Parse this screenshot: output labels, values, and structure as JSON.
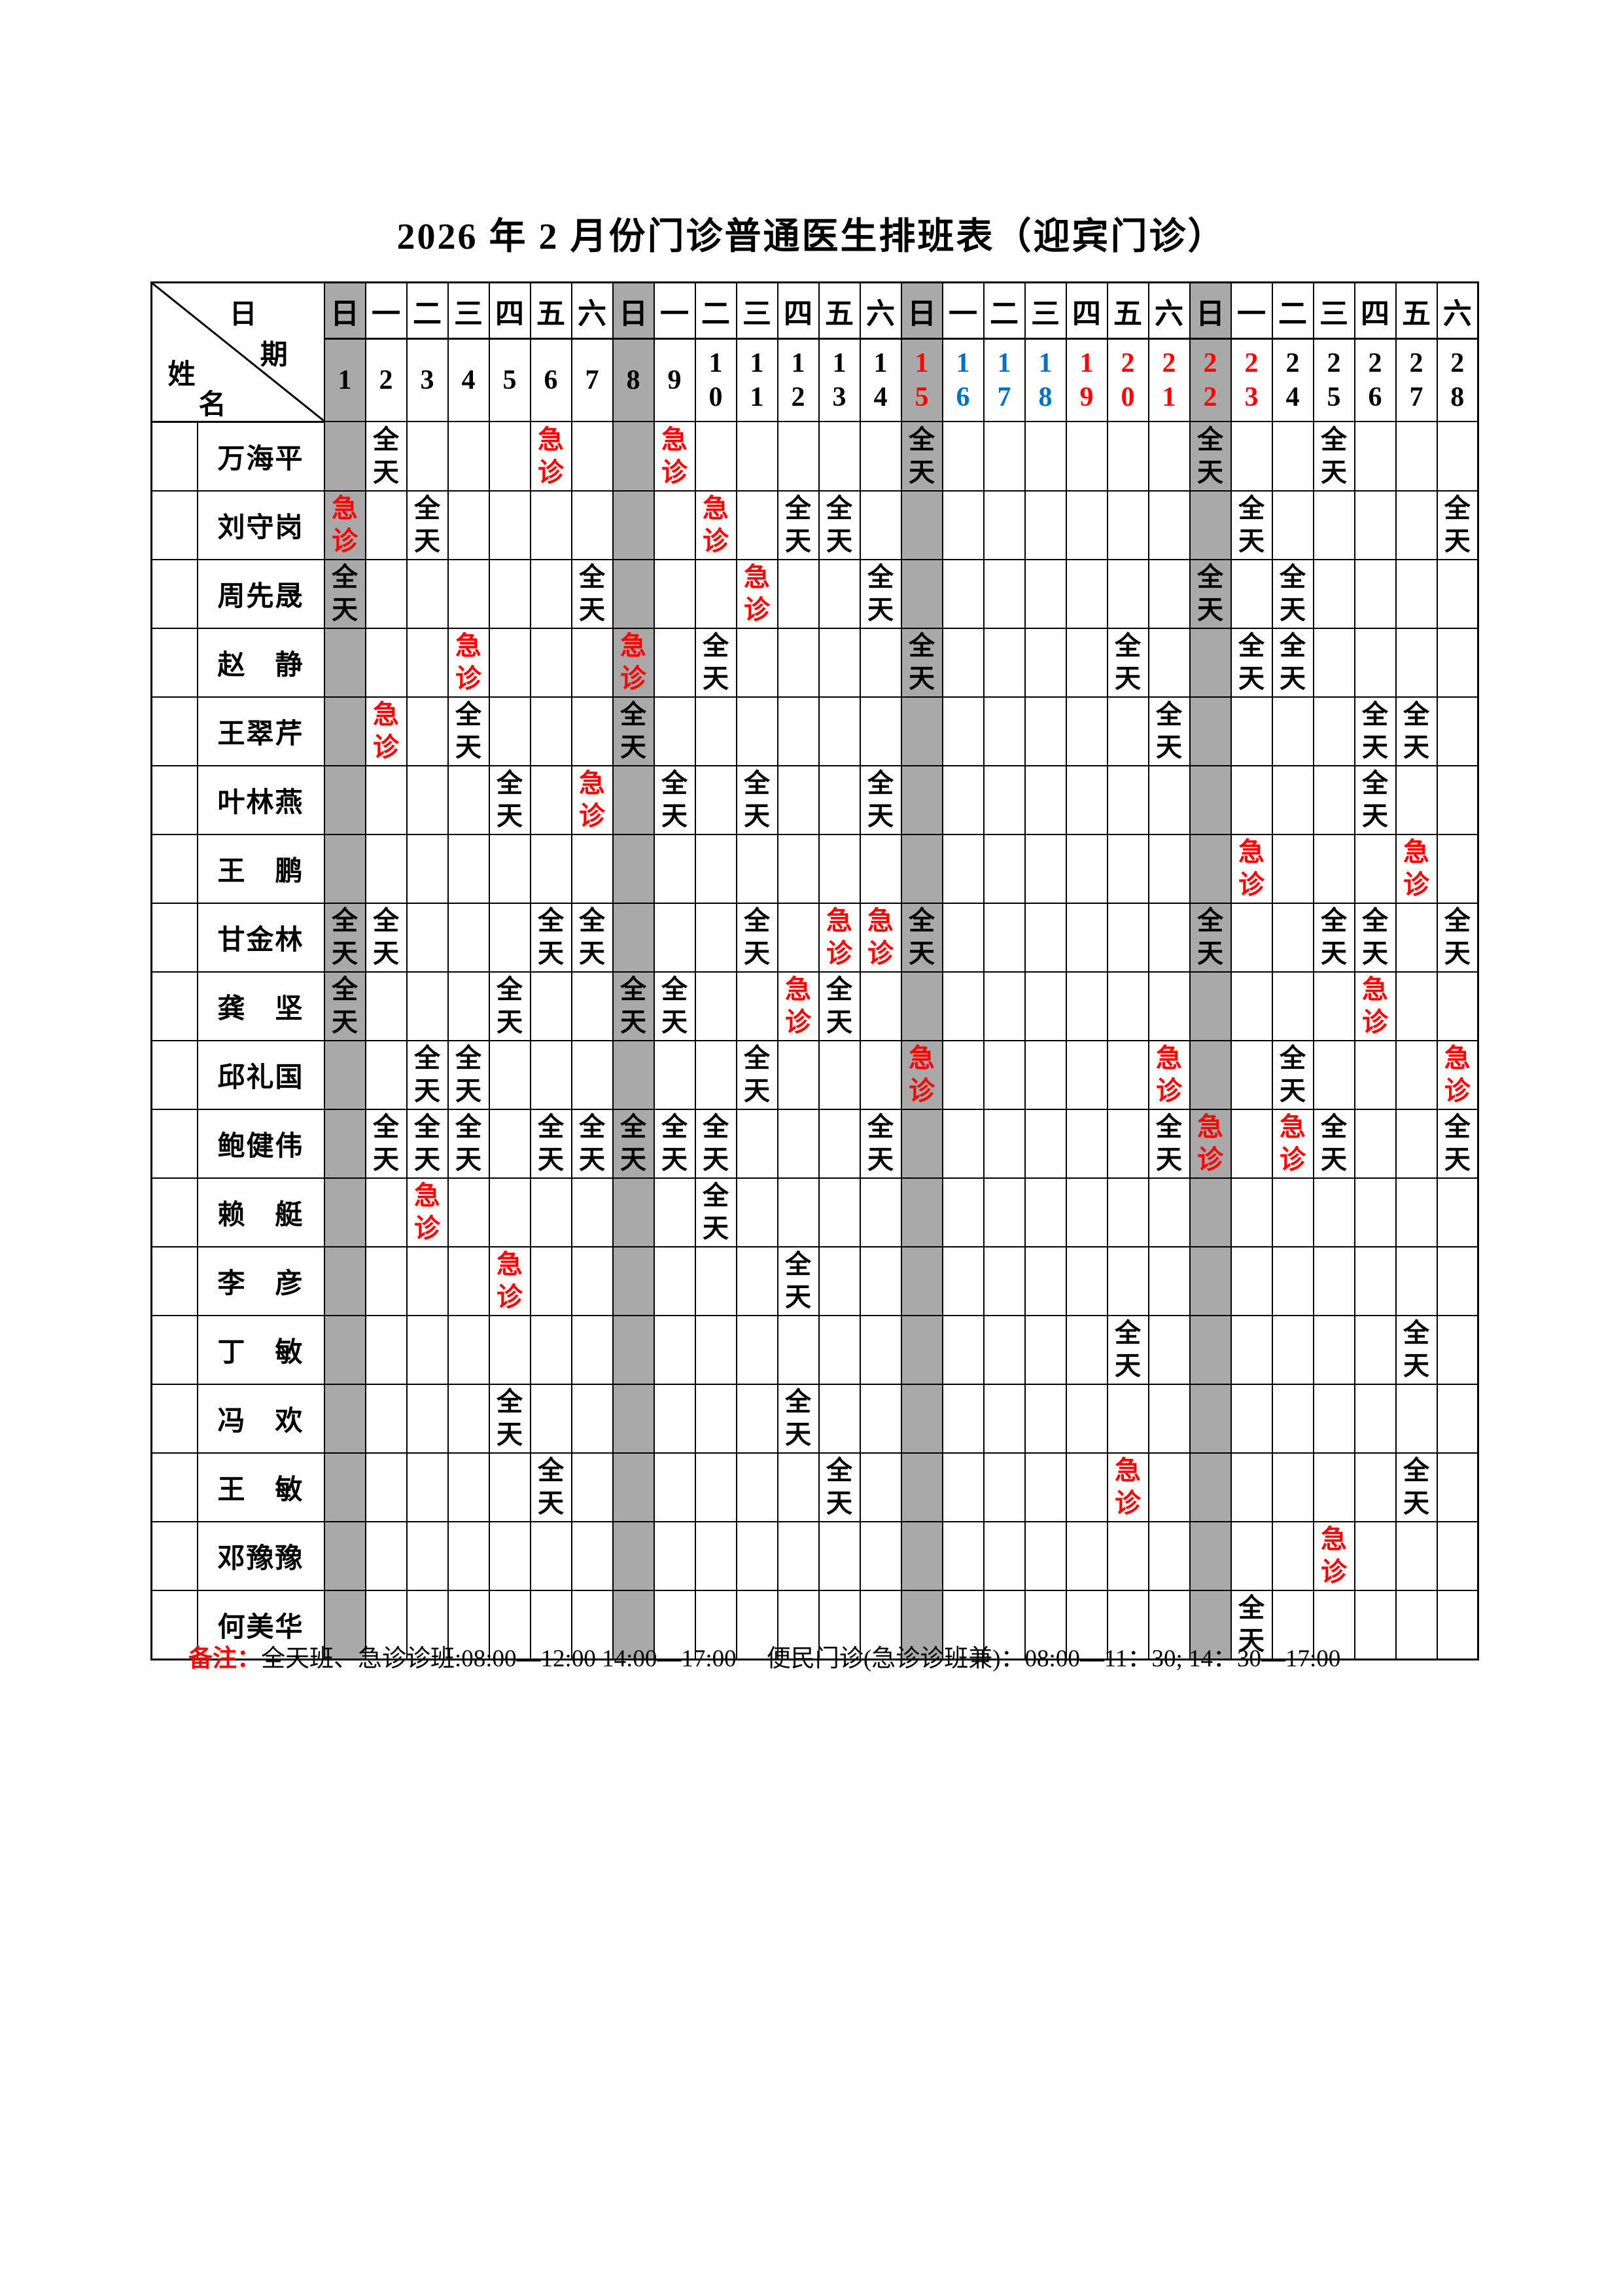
{
  "title": "2026 年 2 月份门诊普通医生排班表（迎宾门诊）",
  "corner": {
    "date_char1": "日",
    "date_char2": "期",
    "name_char1": "姓",
    "name_char2": "名"
  },
  "colors": {
    "red": "#ff0000",
    "blue": "#0070c0",
    "sunday_gray": "#a9a9a9"
  },
  "marks": {
    "full_day": "全天",
    "emergency": "急诊"
  },
  "calendar": {
    "weekdays": [
      "日",
      "一",
      "二",
      "三",
      "四",
      "五",
      "六",
      "日",
      "一",
      "二",
      "三",
      "四",
      "五",
      "六",
      "日",
      "一",
      "二",
      "三",
      "四",
      "五",
      "六",
      "日",
      "一",
      "二",
      "三",
      "四",
      "五",
      "六"
    ],
    "days": [
      {
        "n": 1,
        "color": "black",
        "gray": true
      },
      {
        "n": 2,
        "color": "black",
        "gray": false
      },
      {
        "n": 3,
        "color": "black",
        "gray": false
      },
      {
        "n": 4,
        "color": "black",
        "gray": false
      },
      {
        "n": 5,
        "color": "black",
        "gray": false
      },
      {
        "n": 6,
        "color": "black",
        "gray": false
      },
      {
        "n": 7,
        "color": "black",
        "gray": false
      },
      {
        "n": 8,
        "color": "black",
        "gray": true
      },
      {
        "n": 9,
        "color": "black",
        "gray": false
      },
      {
        "n": 10,
        "color": "black",
        "gray": false
      },
      {
        "n": 11,
        "color": "black",
        "gray": false
      },
      {
        "n": 12,
        "color": "black",
        "gray": false
      },
      {
        "n": 13,
        "color": "black",
        "gray": false
      },
      {
        "n": 14,
        "color": "black",
        "gray": false
      },
      {
        "n": 15,
        "color": "red",
        "gray": true
      },
      {
        "n": 16,
        "color": "blue",
        "gray": false
      },
      {
        "n": 17,
        "color": "blue",
        "gray": false
      },
      {
        "n": 18,
        "color": "blue",
        "gray": false
      },
      {
        "n": 19,
        "color": "red",
        "gray": false
      },
      {
        "n": 20,
        "color": "red",
        "gray": false
      },
      {
        "n": 21,
        "color": "red",
        "gray": false
      },
      {
        "n": 22,
        "color": "red",
        "gray": true
      },
      {
        "n": 23,
        "color": "red",
        "gray": false
      },
      {
        "n": 24,
        "color": "black",
        "gray": false
      },
      {
        "n": 25,
        "color": "black",
        "gray": false
      },
      {
        "n": 26,
        "color": "black",
        "gray": false
      },
      {
        "n": 27,
        "color": "black",
        "gray": false
      },
      {
        "n": 28,
        "color": "black",
        "gray": false
      }
    ]
  },
  "roster": [
    {
      "name": "万海平",
      "shifts": {
        "2": "全天",
        "6": "急诊",
        "9": "急诊",
        "15": "全天",
        "22": "全天",
        "25": "全天"
      }
    },
    {
      "name": "刘守岗",
      "shifts": {
        "1": "急诊",
        "3": "全天",
        "10": "急诊",
        "12": "全天",
        "13": "全天",
        "23": "全天",
        "28": "全天"
      }
    },
    {
      "name": "周先晟",
      "shifts": {
        "1": "全天",
        "7": "全天",
        "11": "急诊",
        "14": "全天",
        "22": "全天",
        "24": "全天"
      }
    },
    {
      "name": "赵　静",
      "shifts": {
        "4": "急诊",
        "8": "急诊",
        "10": "全天",
        "15": "全天",
        "20": "全天",
        "23": "全天",
        "24": "全天"
      }
    },
    {
      "name": "王翠芹",
      "shifts": {
        "2": "急诊",
        "4": "全天",
        "8": "全天",
        "21": "全天",
        "26": "全天",
        "27": "全天"
      }
    },
    {
      "name": "叶林燕",
      "shifts": {
        "5": "全天",
        "7": "急诊",
        "9": "全天",
        "11": "全天",
        "14": "全天",
        "26": "全天"
      }
    },
    {
      "name": "王　鹏",
      "shifts": {
        "23": "急诊",
        "27": "急诊"
      }
    },
    {
      "name": "甘金林",
      "shifts": {
        "1": "全天",
        "2": "全天",
        "6": "全天",
        "7": "全天",
        "11": "全天",
        "13": "急诊",
        "14": "急诊",
        "15": "全天",
        "22": "全天",
        "25": "全天",
        "26": "全天",
        "28": "全天"
      }
    },
    {
      "name": "龚　坚",
      "shifts": {
        "1": "全天",
        "5": "全天",
        "8": "全天",
        "9": "全天",
        "12": "急诊",
        "13": "全天",
        "26": "急诊"
      }
    },
    {
      "name": "邱礼国",
      "shifts": {
        "3": "全天",
        "4": "全天",
        "11": "全天",
        "15": "急诊",
        "21": "急诊",
        "24": "全天",
        "28": "急诊"
      }
    },
    {
      "name": "鲍健伟",
      "shifts": {
        "2": "全天",
        "3": "全天",
        "4": "全天",
        "6": "全天",
        "7": "全天",
        "8": "全天",
        "9": "全天",
        "10": "全天",
        "14": "全天",
        "21": "全天",
        "22": "急诊",
        "24": "急诊",
        "25": "全天",
        "28": "全天"
      }
    },
    {
      "name": "赖　艇",
      "shifts": {
        "3": "急诊",
        "10": "全天"
      }
    },
    {
      "name": "李　彦",
      "shifts": {
        "5": "急诊",
        "12": "全天"
      }
    },
    {
      "name": "丁　敏",
      "shifts": {
        "20": "全天",
        "27": "全天"
      }
    },
    {
      "name": "冯　欢",
      "shifts": {
        "5": "全天",
        "12": "全天"
      }
    },
    {
      "name": "王　敏",
      "shifts": {
        "6": "全天",
        "13": "全天",
        "20": "急诊",
        "27": "全天"
      }
    },
    {
      "name": "邓豫豫",
      "shifts": {
        "25": "急诊"
      }
    },
    {
      "name": "何美华",
      "shifts": {
        "23": "全天"
      }
    }
  ],
  "note": {
    "label": "备注：",
    "text": "全天班、急诊诊班:08:00—12:00 14:00—17:00　 便民门诊(急诊诊班兼)：08:00—11：30; 14：30—17:00"
  }
}
